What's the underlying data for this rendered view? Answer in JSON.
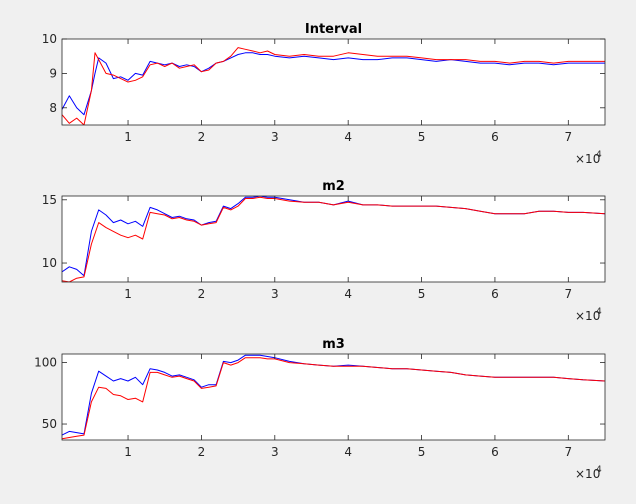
{
  "window": {
    "background": "#f0f0f0"
  },
  "chart_data": [
    {
      "type": "line",
      "title": "Interval",
      "xlabel": "",
      "ylabel": "",
      "xlim": [
        1000,
        75000
      ],
      "ylim": [
        7.5,
        10
      ],
      "x_ticks": [
        10000,
        20000,
        30000,
        40000,
        50000,
        60000,
        70000
      ],
      "x_tick_labels": [
        "1",
        "2",
        "3",
        "4",
        "5",
        "6",
        "7"
      ],
      "y_ticks": [
        8,
        9,
        10
      ],
      "y_tick_labels": [
        "8",
        "9",
        "10"
      ],
      "x_exponent": "×10",
      "x_exponent_power": "4",
      "grid": false,
      "series": [
        {
          "color": "#0000ff",
          "x": [
            1000,
            2000,
            3000,
            4000,
            5000,
            5500,
            6000,
            7000,
            8000,
            9000,
            10000,
            11000,
            12000,
            13000,
            14000,
            15000,
            16000,
            17000,
            18000,
            19000,
            20000,
            21000,
            22000,
            23000,
            24000,
            25000,
            26000,
            27000,
            28000,
            29000,
            30000,
            32000,
            34000,
            36000,
            38000,
            40000,
            42000,
            44000,
            46000,
            48000,
            50000,
            52000,
            54000,
            56000,
            58000,
            60000,
            62000,
            64000,
            66000,
            68000,
            70000,
            72000,
            75000
          ],
          "y": [
            7.95,
            8.35,
            8.0,
            7.8,
            8.5,
            9.0,
            9.45,
            9.3,
            8.85,
            8.9,
            8.8,
            9.0,
            8.95,
            9.35,
            9.3,
            9.25,
            9.3,
            9.2,
            9.25,
            9.2,
            9.05,
            9.15,
            9.3,
            9.35,
            9.45,
            9.55,
            9.6,
            9.6,
            9.55,
            9.55,
            9.5,
            9.45,
            9.5,
            9.45,
            9.4,
            9.45,
            9.4,
            9.4,
            9.45,
            9.45,
            9.4,
            9.35,
            9.4,
            9.35,
            9.3,
            9.3,
            9.25,
            9.3,
            9.3,
            9.25,
            9.3,
            9.3,
            9.3
          ]
        },
        {
          "color": "#ff0000",
          "x": [
            1000,
            2000,
            3000,
            4000,
            5000,
            5500,
            6000,
            7000,
            8000,
            9000,
            10000,
            11000,
            12000,
            13000,
            14000,
            15000,
            16000,
            17000,
            18000,
            19000,
            20000,
            21000,
            22000,
            23000,
            24000,
            25000,
            26000,
            27000,
            28000,
            29000,
            30000,
            32000,
            34000,
            36000,
            38000,
            40000,
            42000,
            44000,
            46000,
            48000,
            50000,
            52000,
            54000,
            56000,
            58000,
            60000,
            62000,
            64000,
            66000,
            68000,
            70000,
            72000,
            75000
          ],
          "y": [
            7.8,
            7.55,
            7.7,
            7.5,
            8.5,
            9.6,
            9.4,
            9.0,
            8.95,
            8.85,
            8.75,
            8.8,
            8.9,
            9.25,
            9.3,
            9.2,
            9.3,
            9.15,
            9.2,
            9.25,
            9.05,
            9.1,
            9.3,
            9.35,
            9.5,
            9.75,
            9.7,
            9.65,
            9.6,
            9.65,
            9.55,
            9.5,
            9.55,
            9.5,
            9.5,
            9.6,
            9.55,
            9.5,
            9.5,
            9.5,
            9.45,
            9.4,
            9.4,
            9.4,
            9.35,
            9.35,
            9.3,
            9.35,
            9.35,
            9.3,
            9.35,
            9.35,
            9.35
          ]
        }
      ]
    },
    {
      "type": "line",
      "title": "m2",
      "xlabel": "",
      "ylabel": "",
      "xlim": [
        1000,
        75000
      ],
      "ylim": [
        8.5,
        15.3
      ],
      "x_ticks": [
        10000,
        20000,
        30000,
        40000,
        50000,
        60000,
        70000
      ],
      "x_tick_labels": [
        "1",
        "2",
        "3",
        "4",
        "5",
        "6",
        "7"
      ],
      "y_ticks": [
        10,
        15
      ],
      "y_tick_labels": [
        "10",
        "15"
      ],
      "x_exponent": "×10",
      "x_exponent_power": "4",
      "grid": false,
      "series": [
        {
          "color": "#0000ff",
          "x": [
            1000,
            2000,
            3000,
            4000,
            5000,
            6000,
            7000,
            8000,
            9000,
            10000,
            11000,
            12000,
            13000,
            14000,
            15000,
            16000,
            17000,
            18000,
            19000,
            20000,
            21000,
            22000,
            23000,
            24000,
            25000,
            26000,
            27000,
            28000,
            29000,
            30000,
            32000,
            34000,
            36000,
            38000,
            40000,
            42000,
            44000,
            46000,
            48000,
            50000,
            52000,
            54000,
            56000,
            58000,
            60000,
            62000,
            64000,
            66000,
            68000,
            70000,
            72000,
            75000
          ],
          "y": [
            9.3,
            9.7,
            9.5,
            9.0,
            12.5,
            14.2,
            13.8,
            13.2,
            13.4,
            13.1,
            13.3,
            12.9,
            14.4,
            14.2,
            13.9,
            13.6,
            13.7,
            13.5,
            13.4,
            13.0,
            13.2,
            13.3,
            14.5,
            14.3,
            14.7,
            15.2,
            15.2,
            15.3,
            15.2,
            15.2,
            15.0,
            14.8,
            14.8,
            14.6,
            14.9,
            14.6,
            14.6,
            14.5,
            14.5,
            14.5,
            14.5,
            14.4,
            14.3,
            14.1,
            13.9,
            13.9,
            13.9,
            14.1,
            14.1,
            14.0,
            14.0,
            13.9
          ]
        },
        {
          "color": "#ff0000",
          "x": [
            1000,
            2000,
            3000,
            4000,
            5000,
            6000,
            7000,
            8000,
            9000,
            10000,
            11000,
            12000,
            13000,
            14000,
            15000,
            16000,
            17000,
            18000,
            19000,
            20000,
            21000,
            22000,
            23000,
            24000,
            25000,
            26000,
            27000,
            28000,
            29000,
            30000,
            32000,
            34000,
            36000,
            38000,
            40000,
            42000,
            44000,
            46000,
            48000,
            50000,
            52000,
            54000,
            56000,
            58000,
            60000,
            62000,
            64000,
            66000,
            68000,
            70000,
            72000,
            75000
          ],
          "y": [
            8.6,
            8.5,
            8.8,
            8.9,
            11.5,
            13.2,
            12.8,
            12.5,
            12.2,
            12.0,
            12.2,
            11.9,
            14.0,
            13.9,
            13.8,
            13.5,
            13.6,
            13.4,
            13.3,
            13.0,
            13.1,
            13.2,
            14.4,
            14.2,
            14.5,
            15.1,
            15.1,
            15.2,
            15.1,
            15.1,
            14.9,
            14.8,
            14.8,
            14.6,
            14.8,
            14.6,
            14.6,
            14.5,
            14.5,
            14.5,
            14.5,
            14.4,
            14.3,
            14.1,
            13.9,
            13.9,
            13.9,
            14.1,
            14.1,
            14.0,
            14.0,
            13.9
          ]
        }
      ]
    },
    {
      "type": "line",
      "title": "m3",
      "xlabel": "",
      "ylabel": "",
      "xlim": [
        1000,
        75000
      ],
      "ylim": [
        37,
        107
      ],
      "x_ticks": [
        10000,
        20000,
        30000,
        40000,
        50000,
        60000,
        70000
      ],
      "x_tick_labels": [
        "1",
        "2",
        "3",
        "4",
        "5",
        "6",
        "7"
      ],
      "y_ticks": [
        50,
        100
      ],
      "y_tick_labels": [
        "50",
        "100"
      ],
      "x_exponent": "×10",
      "x_exponent_power": "4",
      "grid": false,
      "series": [
        {
          "color": "#0000ff",
          "x": [
            1000,
            2000,
            3000,
            4000,
            5000,
            6000,
            7000,
            8000,
            9000,
            10000,
            11000,
            12000,
            13000,
            14000,
            15000,
            16000,
            17000,
            18000,
            19000,
            20000,
            21000,
            22000,
            23000,
            24000,
            25000,
            26000,
            27000,
            28000,
            29000,
            30000,
            32000,
            34000,
            36000,
            38000,
            40000,
            42000,
            44000,
            46000,
            48000,
            50000,
            52000,
            54000,
            56000,
            58000,
            60000,
            62000,
            64000,
            66000,
            68000,
            70000,
            72000,
            75000
          ],
          "y": [
            41,
            44,
            43,
            42,
            75,
            93,
            89,
            85,
            87,
            85,
            88,
            82,
            95,
            94,
            92,
            89,
            90,
            88,
            86,
            80,
            82,
            82,
            101,
            100,
            102,
            106,
            106,
            106,
            105,
            104,
            101,
            99,
            98,
            97,
            98,
            97,
            96,
            95,
            95,
            94,
            93,
            92,
            90,
            89,
            88,
            88,
            88,
            88,
            88,
            87,
            86,
            85
          ]
        },
        {
          "color": "#ff0000",
          "x": [
            1000,
            2000,
            3000,
            4000,
            5000,
            6000,
            7000,
            8000,
            9000,
            10000,
            11000,
            12000,
            13000,
            14000,
            15000,
            16000,
            17000,
            18000,
            19000,
            20000,
            21000,
            22000,
            23000,
            24000,
            25000,
            26000,
            27000,
            28000,
            29000,
            30000,
            32000,
            34000,
            36000,
            38000,
            40000,
            42000,
            44000,
            46000,
            48000,
            50000,
            52000,
            54000,
            56000,
            58000,
            60000,
            62000,
            64000,
            66000,
            68000,
            70000,
            72000,
            75000
          ],
          "y": [
            38,
            39,
            40,
            41,
            68,
            80,
            79,
            74,
            73,
            70,
            71,
            68,
            92,
            92,
            90,
            88,
            89,
            87,
            85,
            79,
            80,
            81,
            100,
            98,
            100,
            104,
            104,
            104,
            103,
            103,
            100,
            99,
            98,
            97,
            97,
            97,
            96,
            95,
            95,
            94,
            93,
            92,
            90,
            89,
            88,
            88,
            88,
            88,
            88,
            87,
            86,
            85
          ]
        }
      ]
    }
  ]
}
